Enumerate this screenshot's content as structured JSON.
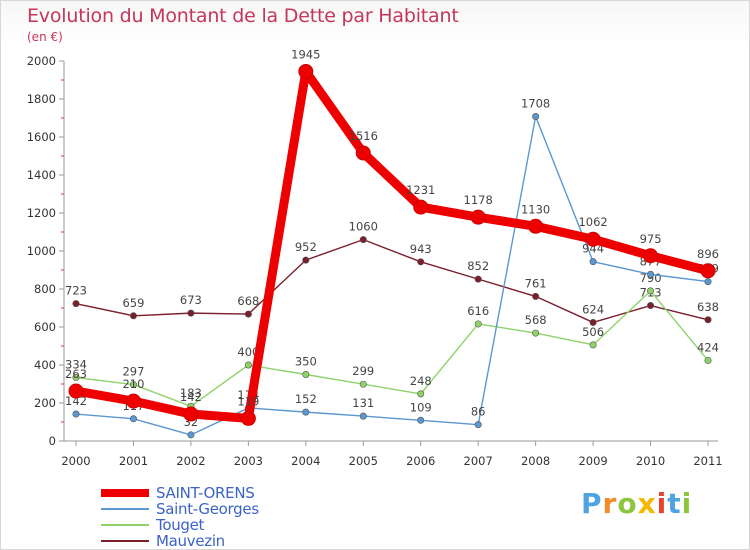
{
  "title": "Evolution du Montant de la Dette par Habitant",
  "subtitle": "(en €)",
  "logo": {
    "text": "Proxiti",
    "letters": [
      "P",
      "r",
      "o",
      "x",
      "i",
      "t",
      "i"
    ],
    "colors": [
      "#4fa3e3",
      "#f28c28",
      "#8cc63f",
      "#f5b800",
      "#e8432c",
      "#4fa3e3",
      "#8cc63f"
    ]
  },
  "chart_data": {
    "type": "line",
    "title": "Evolution du Montant de la Dette par Habitant",
    "subtitle": "(en €)",
    "xlabel": "",
    "ylabel": "",
    "ylim": [
      0,
      2000
    ],
    "yticks": [
      0,
      200,
      400,
      600,
      800,
      1000,
      1200,
      1400,
      1600,
      1800,
      2000
    ],
    "categories": [
      "2000",
      "2001",
      "2002",
      "2003",
      "2004",
      "2005",
      "2006",
      "2007",
      "2008",
      "2009",
      "2010",
      "2011"
    ],
    "grid": false,
    "legend": "bottom-left",
    "series": [
      {
        "name": "Mauvezin",
        "color": "#7a1f2b",
        "values": [
          723,
          659,
          673,
          668,
          952,
          1060,
          943,
          852,
          761,
          624,
          713,
          638
        ],
        "labels": [
          "723",
          "659",
          "673",
          "668",
          "952",
          "1060",
          "943",
          "852",
          "761",
          "624",
          "713",
          "638"
        ]
      },
      {
        "name": "Touget",
        "color": "#8fd26a",
        "values": [
          334,
          297,
          183,
          400,
          350,
          299,
          248,
          616,
          568,
          506,
          790,
          424
        ],
        "labels": [
          "334",
          "297",
          "183",
          "400",
          "350",
          "299",
          "248",
          "616",
          "568",
          "506",
          "790",
          "424"
        ]
      },
      {
        "name": "Saint-Georges",
        "color": "#5b98d0",
        "values": [
          142,
          117,
          32,
          174,
          152,
          131,
          109,
          86,
          1708,
          944,
          877,
          839
        ],
        "labels": [
          "142",
          "117",
          "32",
          "174",
          "152",
          "131",
          "109",
          "86",
          "1708",
          "944",
          "877",
          "839"
        ]
      },
      {
        "name": "SAINT-ORENS",
        "color": "#ee0000",
        "values": [
          263,
          210,
          142,
          119,
          1945,
          1516,
          1231,
          1178,
          1130,
          1062,
          975,
          896
        ],
        "labels": [
          "263",
          "210",
          "142",
          "119",
          "1945",
          "1516",
          "1231",
          "1178",
          "1130",
          "1062",
          "975",
          "896"
        ]
      }
    ],
    "legend_order": [
      "SAINT-ORENS",
      "Saint-Georges",
      "Touget",
      "Mauvezin"
    ]
  }
}
